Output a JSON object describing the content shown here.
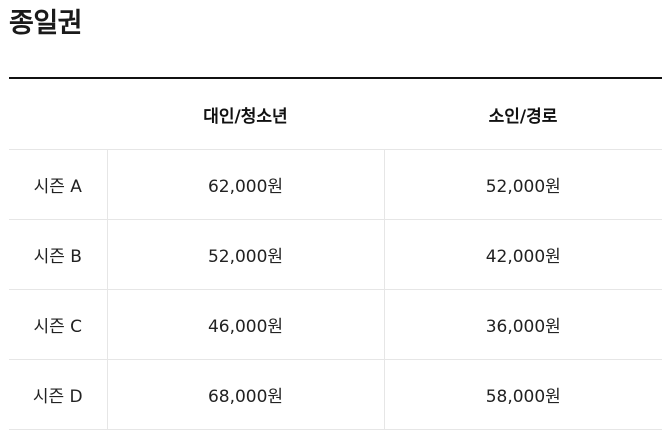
{
  "page": {
    "title": "종일권"
  },
  "table": {
    "headers": [
      "",
      "대인/청소년",
      "소인/경로"
    ],
    "rows": [
      {
        "season": "시즌 A",
        "adult": "62,000원",
        "senior": "52,000원"
      },
      {
        "season": "시즌 B",
        "adult": "52,000원",
        "senior": "42,000원"
      },
      {
        "season": "시즌 C",
        "adult": "46,000원",
        "senior": "36,000원"
      },
      {
        "season": "시즌 D",
        "adult": "68,000원",
        "senior": "58,000원"
      }
    ]
  }
}
